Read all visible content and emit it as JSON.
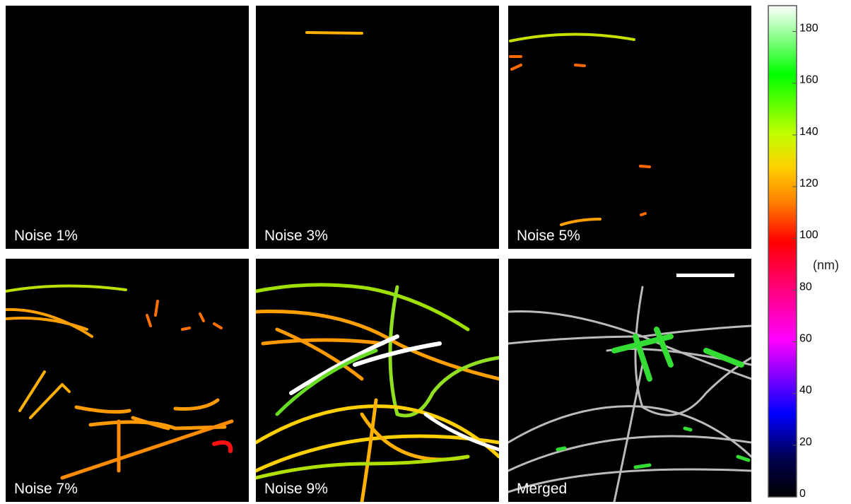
{
  "panels": [
    {
      "label": "Noise 1%"
    },
    {
      "label": "Noise 3%"
    },
    {
      "label": "Noise 5%"
    },
    {
      "label": "Noise 7%"
    },
    {
      "label": "Noise 9%"
    },
    {
      "label": "Merged"
    }
  ],
  "colorbar": {
    "lim": [
      0,
      190
    ],
    "ticks": [
      0,
      20,
      40,
      60,
      80,
      100,
      120,
      140,
      160,
      180
    ],
    "unit": "(nm)"
  }
}
